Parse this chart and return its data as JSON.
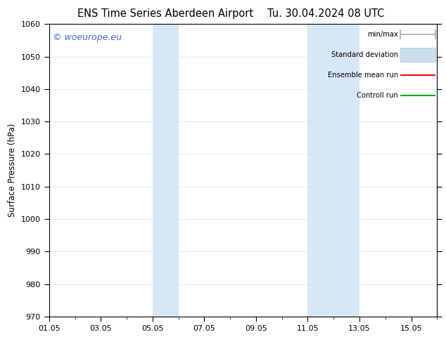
{
  "title": "ENS Time Series Aberdeen Airport",
  "title_right": "Tu. 30.04.2024 08 UTC",
  "ylabel": "Surface Pressure (hPa)",
  "watermark": "© woeurope.eu",
  "ylim": [
    970,
    1060
  ],
  "yticks": [
    970,
    980,
    990,
    1000,
    1010,
    1020,
    1030,
    1040,
    1050,
    1060
  ],
  "xtick_labels": [
    "01.05",
    "03.05",
    "05.05",
    "07.05",
    "09.05",
    "11.05",
    "13.05",
    "15.05"
  ],
  "xtick_positions": [
    0,
    2,
    4,
    6,
    8,
    10,
    12,
    14
  ],
  "x_minor_ticks": [
    0,
    1,
    2,
    3,
    4,
    5,
    6,
    7,
    8,
    9,
    10,
    11,
    12,
    13,
    14,
    15
  ],
  "xlim": [
    0,
    15
  ],
  "shaded_bands": [
    {
      "start": 4,
      "end": 5
    },
    {
      "start": 10,
      "end": 12
    }
  ],
  "shade_color": "#d6e8f7",
  "legend_items": [
    {
      "label": "min/max",
      "color": "#aaaaaa",
      "style": "line_with_ticks"
    },
    {
      "label": "Standard deviation",
      "color": "#ccddee",
      "style": "fill"
    },
    {
      "label": "Ensemble mean run",
      "color": "#ff0000",
      "style": "line"
    },
    {
      "label": "Controll run",
      "color": "#00aa00",
      "style": "line"
    }
  ],
  "background_color": "#ffffff",
  "grid_color": "#dddddd",
  "title_fontsize": 10.5,
  "axis_fontsize": 8,
  "watermark_fontsize": 9,
  "watermark_color": "#4466cc"
}
